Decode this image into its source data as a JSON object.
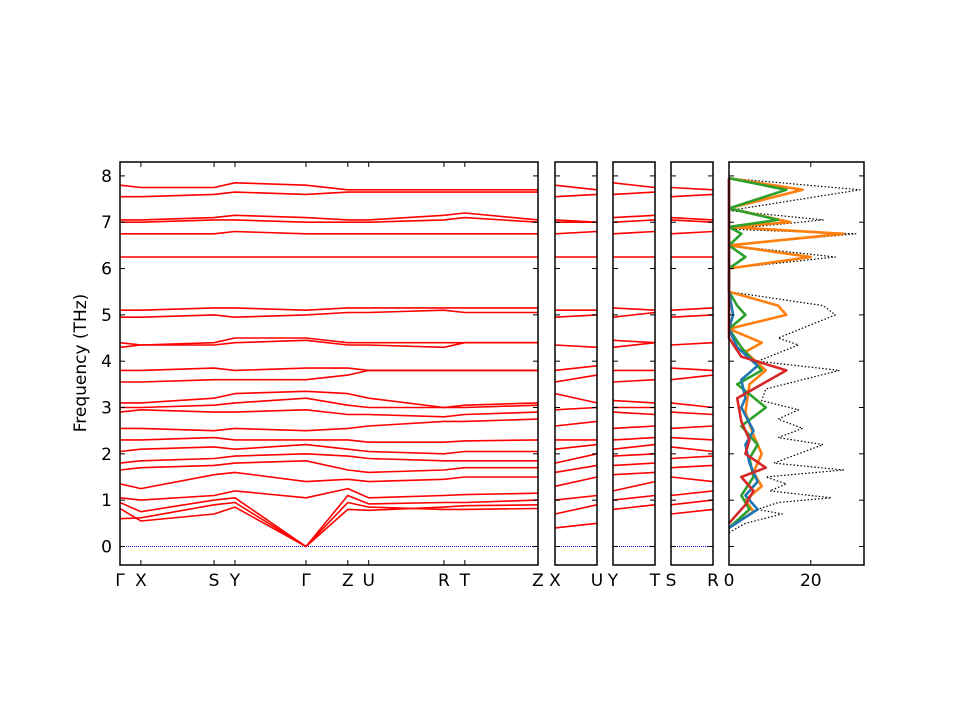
{
  "chart_data": {
    "type": "line",
    "ylabel": "Frequency (THz)",
    "ylim": [
      -0.4,
      8.3
    ],
    "yticks": [
      "0",
      "1",
      "2",
      "3",
      "4",
      "5",
      "6",
      "7",
      "8"
    ],
    "colors": {
      "bands": "#ff0000",
      "zero_line": "#0000cc",
      "dos_total": "#000000"
    },
    "band_panels": [
      {
        "labels": [
          "Γ",
          "X",
          "S",
          "Y",
          "Γ",
          "Z",
          "U",
          "R",
          "T",
          "Z"
        ],
        "path_positions": [
          0,
          0.05,
          0.225,
          0.275,
          0.445,
          0.545,
          0.595,
          0.775,
          0.825,
          1.0
        ],
        "branches": [
          [
            0.82,
            0.55,
            0.7,
            0.85,
            0.0,
            0.95,
            0.85,
            0.8,
            0.8,
            0.82
          ],
          [
            0.6,
            0.62,
            0.9,
            0.95,
            0.0,
            0.8,
            0.78,
            0.85,
            0.88,
            0.9
          ],
          [
            0.95,
            0.75,
            1.0,
            1.05,
            0.0,
            1.1,
            0.92,
            0.95,
            0.95,
            1.0
          ],
          [
            1.05,
            1.0,
            1.1,
            1.2,
            1.05,
            1.25,
            1.05,
            1.1,
            1.12,
            1.15
          ],
          [
            1.35,
            1.25,
            1.55,
            1.6,
            1.4,
            1.45,
            1.4,
            1.45,
            1.5,
            1.5
          ],
          [
            1.65,
            1.7,
            1.75,
            1.8,
            1.85,
            1.65,
            1.6,
            1.65,
            1.7,
            1.7
          ],
          [
            1.8,
            1.85,
            1.9,
            1.95,
            2.0,
            1.95,
            1.9,
            1.85,
            1.85,
            1.85
          ],
          [
            2.05,
            2.1,
            2.15,
            2.1,
            2.2,
            2.1,
            2.05,
            2.0,
            2.05,
            2.05
          ],
          [
            2.3,
            2.3,
            2.35,
            2.3,
            2.3,
            2.3,
            2.25,
            2.25,
            2.28,
            2.3
          ],
          [
            2.55,
            2.55,
            2.5,
            2.55,
            2.5,
            2.55,
            2.6,
            2.7,
            2.7,
            2.75
          ],
          [
            2.9,
            2.95,
            2.9,
            2.9,
            2.95,
            2.85,
            2.85,
            2.8,
            2.85,
            2.9
          ],
          [
            3.0,
            3.0,
            3.05,
            3.1,
            3.2,
            3.05,
            3.0,
            3.0,
            3.0,
            3.05
          ],
          [
            3.1,
            3.1,
            3.2,
            3.3,
            3.35,
            3.3,
            3.2,
            3.0,
            3.05,
            3.1
          ],
          [
            3.55,
            3.55,
            3.6,
            3.6,
            3.6,
            3.7,
            3.8,
            3.8,
            3.8,
            3.8
          ],
          [
            3.8,
            3.8,
            3.85,
            3.8,
            3.85,
            3.85,
            3.8,
            3.8,
            3.8,
            3.8
          ],
          [
            4.3,
            4.35,
            4.35,
            4.4,
            4.45,
            4.35,
            4.35,
            4.3,
            4.4,
            4.4
          ],
          [
            4.4,
            4.35,
            4.4,
            4.5,
            4.5,
            4.4,
            4.4,
            4.4,
            4.4,
            4.4
          ],
          [
            4.95,
            4.95,
            5.0,
            4.95,
            5.0,
            5.05,
            5.05,
            5.1,
            5.05,
            5.05
          ],
          [
            5.1,
            5.1,
            5.15,
            5.15,
            5.1,
            5.15,
            5.15,
            5.15,
            5.15,
            5.15
          ],
          [
            6.25,
            6.25,
            6.25,
            6.25,
            6.25,
            6.25,
            6.25,
            6.25,
            6.25,
            6.25
          ],
          [
            6.75,
            6.75,
            6.75,
            6.8,
            6.75,
            6.75,
            6.75,
            6.75,
            6.75,
            6.75
          ],
          [
            7.0,
            7.0,
            7.05,
            7.05,
            7.0,
            7.0,
            7.0,
            7.05,
            7.1,
            7.0
          ],
          [
            7.05,
            7.05,
            7.1,
            7.15,
            7.1,
            7.05,
            7.05,
            7.15,
            7.2,
            7.05
          ],
          [
            7.55,
            7.55,
            7.6,
            7.65,
            7.6,
            7.65,
            7.65,
            7.65,
            7.65,
            7.65
          ],
          [
            7.8,
            7.75,
            7.75,
            7.85,
            7.8,
            7.7,
            7.7,
            7.7,
            7.7,
            7.7
          ]
        ]
      },
      {
        "labels": [
          "X",
          "U"
        ],
        "path_positions": [
          0,
          1
        ],
        "branches": [
          [
            0.4,
            0.5
          ],
          [
            0.7,
            0.9
          ],
          [
            1.0,
            1.1
          ],
          [
            1.3,
            1.5
          ],
          [
            1.6,
            1.75
          ],
          [
            1.8,
            2.0
          ],
          [
            2.1,
            2.2
          ],
          [
            2.3,
            2.3
          ],
          [
            2.6,
            2.7
          ],
          [
            2.95,
            3.0
          ],
          [
            3.3,
            3.1
          ],
          [
            3.55,
            3.7
          ],
          [
            3.8,
            3.9
          ],
          [
            4.35,
            4.3
          ],
          [
            4.95,
            5.0
          ],
          [
            5.1,
            5.1
          ],
          [
            6.25,
            6.25
          ],
          [
            6.75,
            6.8
          ],
          [
            7.0,
            7.0
          ],
          [
            7.05,
            7.0
          ],
          [
            7.55,
            7.6
          ],
          [
            7.8,
            7.7
          ]
        ]
      },
      {
        "labels": [
          "Y",
          "T"
        ],
        "path_positions": [
          0,
          1
        ],
        "branches": [
          [
            0.8,
            0.9
          ],
          [
            1.0,
            1.1
          ],
          [
            1.2,
            1.4
          ],
          [
            1.55,
            1.6
          ],
          [
            1.75,
            1.8
          ],
          [
            1.95,
            2.0
          ],
          [
            2.1,
            2.2
          ],
          [
            2.3,
            2.35
          ],
          [
            2.55,
            2.6
          ],
          [
            2.9,
            2.85
          ],
          [
            3.0,
            3.0
          ],
          [
            3.15,
            3.1
          ],
          [
            3.55,
            3.6
          ],
          [
            3.8,
            3.8
          ],
          [
            4.3,
            4.4
          ],
          [
            4.45,
            4.4
          ],
          [
            4.95,
            5.05
          ],
          [
            5.15,
            5.1
          ],
          [
            6.25,
            6.25
          ],
          [
            6.75,
            6.8
          ],
          [
            7.0,
            7.05
          ],
          [
            7.1,
            7.15
          ],
          [
            7.6,
            7.65
          ],
          [
            7.85,
            7.75
          ]
        ]
      },
      {
        "labels": [
          "S",
          "R"
        ],
        "path_positions": [
          0,
          1
        ],
        "branches": [
          [
            0.7,
            0.8
          ],
          [
            0.9,
            1.0
          ],
          [
            1.1,
            1.2
          ],
          [
            1.5,
            1.4
          ],
          [
            1.7,
            1.75
          ],
          [
            1.9,
            1.95
          ],
          [
            2.15,
            2.05
          ],
          [
            2.35,
            2.3
          ],
          [
            2.55,
            2.6
          ],
          [
            2.9,
            2.85
          ],
          [
            3.1,
            3.0
          ],
          [
            3.6,
            3.7
          ],
          [
            3.85,
            3.8
          ],
          [
            4.35,
            4.4
          ],
          [
            4.95,
            5.0
          ],
          [
            5.1,
            5.15
          ],
          [
            6.25,
            6.25
          ],
          [
            6.75,
            6.8
          ],
          [
            7.05,
            7.0
          ],
          [
            7.1,
            7.05
          ],
          [
            7.55,
            7.6
          ],
          [
            7.75,
            7.7
          ]
        ]
      }
    ],
    "dos": {
      "xticks": [
        "0",
        "20"
      ],
      "xlim": [
        0,
        33
      ],
      "series": [
        {
          "color": "#000000",
          "style": "dotted",
          "points": [
            [
              0,
              0.3
            ],
            [
              4,
              0.5
            ],
            [
              13,
              0.7
            ],
            [
              7,
              0.8
            ],
            [
              12,
              0.95
            ],
            [
              25,
              1.05
            ],
            [
              10,
              1.2
            ],
            [
              14,
              1.35
            ],
            [
              9,
              1.5
            ],
            [
              28,
              1.65
            ],
            [
              11,
              1.8
            ],
            [
              17,
              2.0
            ],
            [
              23,
              2.2
            ],
            [
              12,
              2.35
            ],
            [
              18,
              2.55
            ],
            [
              12,
              2.75
            ],
            [
              17,
              2.95
            ],
            [
              8,
              3.15
            ],
            [
              9,
              3.4
            ],
            [
              27,
              3.8
            ],
            [
              7,
              4.0
            ],
            [
              17,
              4.35
            ],
            [
              12,
              4.5
            ],
            [
              26,
              5.0
            ],
            [
              23,
              5.2
            ],
            [
              0,
              5.5
            ],
            [
              0,
              6.0
            ],
            [
              26,
              6.25
            ],
            [
              0,
              6.5
            ],
            [
              31,
              6.75
            ],
            [
              0,
              6.85
            ],
            [
              23,
              7.05
            ],
            [
              0,
              7.25
            ],
            [
              32,
              7.7
            ],
            [
              0,
              7.95
            ]
          ]
        },
        {
          "color": "#ff7f0e",
          "style": "solid",
          "points": [
            [
              0,
              0.4
            ],
            [
              6,
              0.75
            ],
            [
              4,
              1.0
            ],
            [
              8,
              1.3
            ],
            [
              6,
              1.6
            ],
            [
              8,
              2.0
            ],
            [
              6,
              2.4
            ],
            [
              4,
              2.9
            ],
            [
              5,
              3.5
            ],
            [
              9,
              3.8
            ],
            [
              4,
              4.2
            ],
            [
              8,
              4.4
            ],
            [
              0,
              4.7
            ],
            [
              14,
              5.0
            ],
            [
              12,
              5.2
            ],
            [
              0,
              5.5
            ],
            [
              0,
              6.0
            ],
            [
              20,
              6.25
            ],
            [
              0,
              6.5
            ],
            [
              28,
              6.75
            ],
            [
              0,
              6.9
            ],
            [
              15,
              7.0
            ],
            [
              0,
              7.3
            ],
            [
              18,
              7.7
            ],
            [
              0,
              7.95
            ]
          ]
        },
        {
          "color": "#2ca02c",
          "style": "solid",
          "points": [
            [
              0,
              0.4
            ],
            [
              5,
              0.8
            ],
            [
              3,
              1.1
            ],
            [
              6,
              1.5
            ],
            [
              5,
              1.9
            ],
            [
              7,
              2.2
            ],
            [
              3,
              2.6
            ],
            [
              9,
              3.0
            ],
            [
              2,
              3.5
            ],
            [
              8,
              3.8
            ],
            [
              3,
              4.3
            ],
            [
              0,
              4.7
            ],
            [
              4,
              5.0
            ],
            [
              2,
              5.2
            ],
            [
              0,
              5.5
            ],
            [
              0,
              6.0
            ],
            [
              4,
              6.25
            ],
            [
              0,
              6.5
            ],
            [
              3,
              6.75
            ],
            [
              0,
              6.9
            ],
            [
              12,
              7.05
            ],
            [
              0,
              7.3
            ],
            [
              14,
              7.7
            ],
            [
              0,
              7.95
            ]
          ]
        },
        {
          "color": "#1f77b4",
          "style": "solid",
          "points": [
            [
              0,
              0.4
            ],
            [
              7,
              0.8
            ],
            [
              4,
              1.1
            ],
            [
              7,
              1.4
            ],
            [
              5,
              1.8
            ],
            [
              4,
              2.2
            ],
            [
              6,
              2.5
            ],
            [
              3,
              3.0
            ],
            [
              4,
              3.2
            ],
            [
              3,
              3.6
            ],
            [
              7,
              3.9
            ],
            [
              2,
              4.3
            ],
            [
              0,
              4.7
            ],
            [
              1,
              5.0
            ],
            [
              0,
              5.5
            ],
            [
              0,
              7.95
            ]
          ]
        },
        {
          "color": "#d62728",
          "style": "solid",
          "points": [
            [
              0,
              0.5
            ],
            [
              4,
              0.9
            ],
            [
              6,
              1.2
            ],
            [
              3,
              1.5
            ],
            [
              9,
              1.7
            ],
            [
              4,
              2.0
            ],
            [
              5,
              2.3
            ],
            [
              3,
              2.7
            ],
            [
              2,
              3.2
            ],
            [
              14,
              3.8
            ],
            [
              3,
              4.1
            ],
            [
              0,
              4.5
            ],
            [
              0,
              7.95
            ]
          ]
        }
      ]
    }
  }
}
